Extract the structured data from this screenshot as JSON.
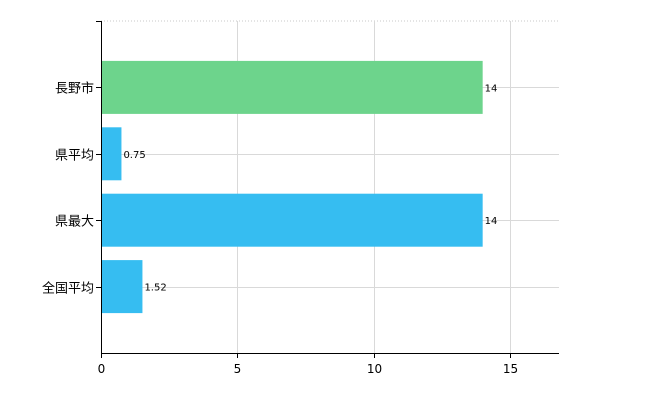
{
  "chart_data": {
    "type": "bar",
    "orientation": "horizontal",
    "categories": [
      "長野市",
      "県平均",
      "県最大",
      "全国平均"
    ],
    "values": [
      14,
      0.75,
      14,
      1.52
    ],
    "value_labels": [
      "14",
      "0.75",
      "14",
      "1.52"
    ],
    "xlim": [
      0,
      16.8
    ],
    "xticks": [
      0,
      5,
      10,
      15
    ],
    "xtick_labels": [
      "0",
      "5",
      "10",
      "15"
    ],
    "grid": true,
    "bar_colors": [
      "#6dd48c",
      "#36bdf1",
      "#36bdf1",
      "#36bdf1"
    ]
  }
}
